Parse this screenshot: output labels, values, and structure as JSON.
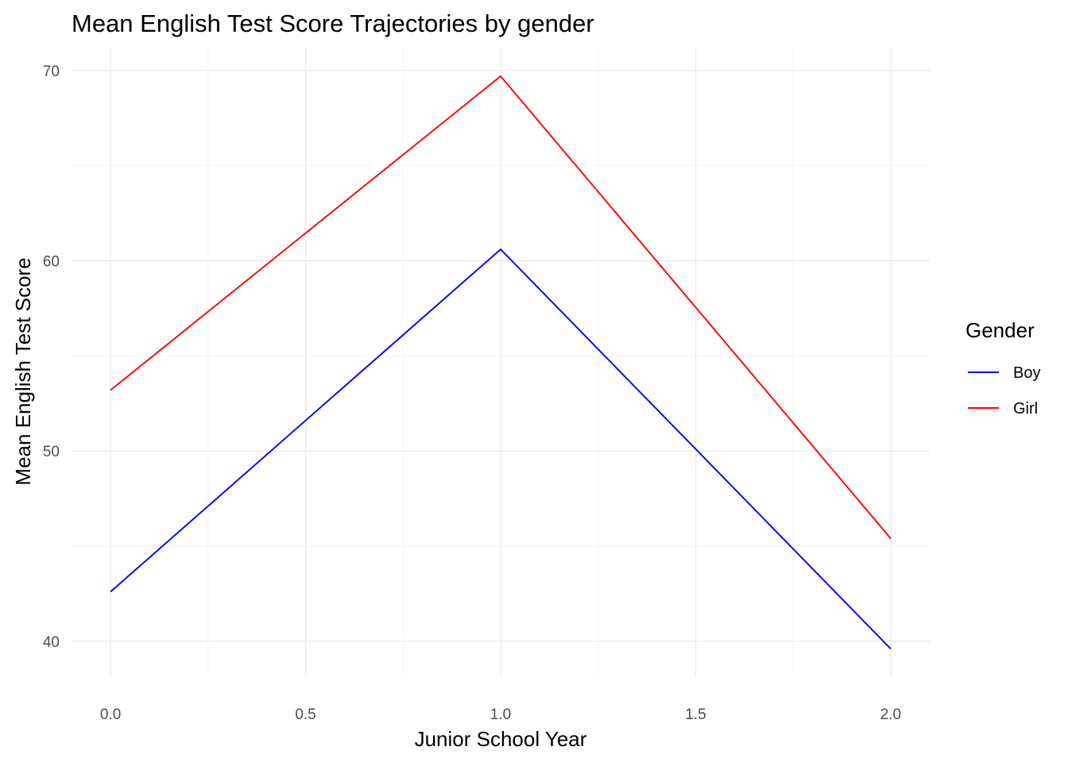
{
  "chart_data": {
    "type": "line",
    "title": "Mean English Test Score Trajectories by gender",
    "xlabel": "Junior School Year",
    "ylabel": "Mean English Test Score",
    "x": [
      0,
      1,
      2
    ],
    "xlim": [
      -0.1,
      2.1
    ],
    "ylim": [
      38.2,
      71.2
    ],
    "x_ticks": [
      "0.0",
      "0.5",
      "1.0",
      "1.5",
      "2.0"
    ],
    "y_ticks": [
      "40",
      "50",
      "60",
      "70"
    ],
    "grid": true,
    "legend": {
      "title": "Gender",
      "position": "right"
    },
    "series": [
      {
        "name": "Boy",
        "color": "#0000ff",
        "values": [
          42.6,
          60.6,
          39.6
        ]
      },
      {
        "name": "Girl",
        "color": "#ff0000",
        "values": [
          53.2,
          69.7,
          45.4
        ]
      }
    ]
  }
}
